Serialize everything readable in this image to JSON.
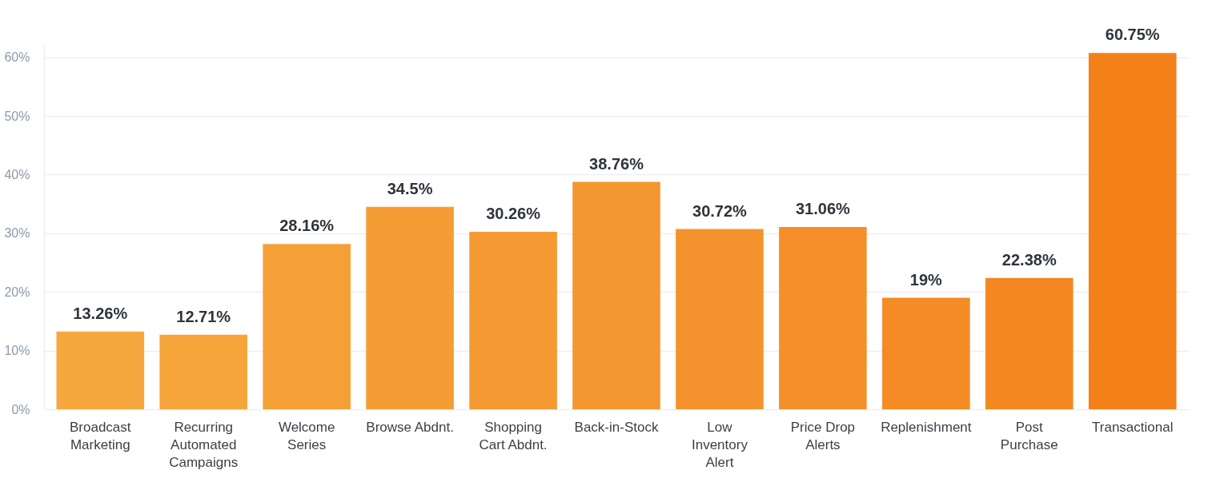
{
  "chart_data": {
    "type": "bar",
    "categories": [
      "Broadcast\nMarketing",
      "Recurring\nAutomated\nCampaigns",
      "Welcome\nSeries",
      "Browse Abdnt.",
      "Shopping\nCart Abdnt.",
      "Back-in-Stock",
      "Low\nInventory\nAlert",
      "Price Drop\nAlerts",
      "Replenishment",
      "Post\nPurchase",
      "Transactional"
    ],
    "values": [
      13.26,
      12.71,
      28.16,
      34.5,
      30.26,
      38.76,
      30.72,
      31.06,
      19,
      22.38,
      60.75
    ],
    "colors": [
      "#f6a73e",
      "#f6a53b",
      "#f5a037",
      "#f59d35",
      "#f59a33",
      "#f49730",
      "#f4932d",
      "#f48f2a",
      "#f48b25",
      "#f48720",
      "#f4801a"
    ],
    "value_labels": [
      "13.26%",
      "12.71%",
      "28.16%",
      "34.5%",
      "30.26%",
      "38.76%",
      "30.72%",
      "31.06%",
      "19%",
      "22.38%",
      "60.75%"
    ],
    "ylim": [
      0,
      62
    ],
    "yticks": [
      {
        "value": 0,
        "label": "0%"
      },
      {
        "value": 10,
        "label": "10%"
      },
      {
        "value": 20,
        "label": "20%"
      },
      {
        "value": 30,
        "label": "30%"
      },
      {
        "value": 40,
        "label": "40%"
      },
      {
        "value": 50,
        "label": "50%"
      },
      {
        "value": 60,
        "label": "60%"
      }
    ],
    "grid": "y"
  }
}
